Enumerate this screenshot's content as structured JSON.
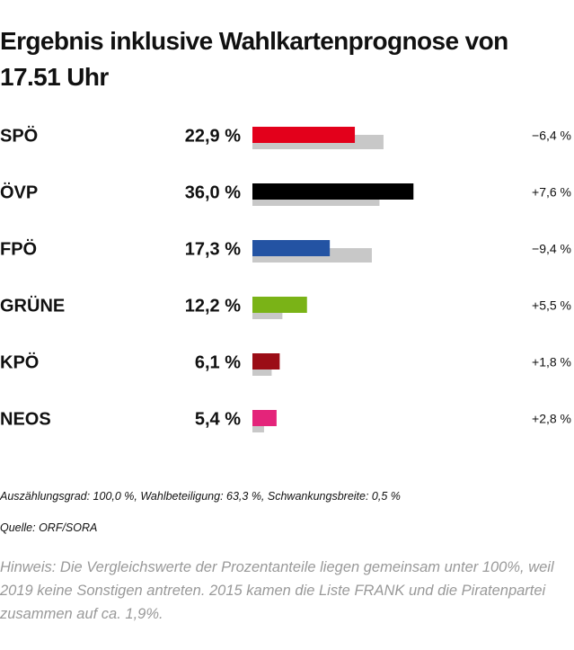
{
  "chart_data": {
    "type": "bar",
    "title": "Ergebnis inklusive Wahlkartenprognose von 17.51 Uhr",
    "categories": [
      "SPÖ",
      "ÖVP",
      "FPÖ",
      "GRÜNE",
      "KPÖ",
      "NEOS"
    ],
    "values": [
      22.9,
      36.0,
      17.3,
      12.2,
      6.1,
      5.4
    ],
    "value_labels": [
      "22,9 %",
      "36,0 %",
      "17,3 %",
      "12,2 %",
      "6,1 %",
      "5,4 %"
    ],
    "colors": [
      "#e3001b",
      "#000000",
      "#2353a3",
      "#7ab317",
      "#9b0d16",
      "#e4247a"
    ],
    "previous_values": [
      29.3,
      28.4,
      26.7,
      6.7,
      4.3,
      2.6
    ],
    "previous_color": "#c8c8c8",
    "changes": [
      -6.4,
      7.6,
      -9.4,
      5.5,
      1.8,
      2.8
    ],
    "change_labels": [
      "−6,4 %",
      "+7,6 %",
      "−9,4 %",
      "+5,5 %",
      "+1,8 %",
      "+2,8 %"
    ],
    "notes": [
      "Auszählungsgrad: 100,0 %, Wahlbeteiligung: 63,3 %, Schwankungsbreite: 0,5 %",
      "Quelle: ORF/SORA"
    ],
    "hint": "Hinweis: Die Vergleichswerte der Prozentanteile liegen gemeinsam unter 100%, weil 2019 keine Sonstigen antreten. 2015 kamen die Liste FRANK und die Piratenpartei zusammen auf ca. 1,9%."
  }
}
